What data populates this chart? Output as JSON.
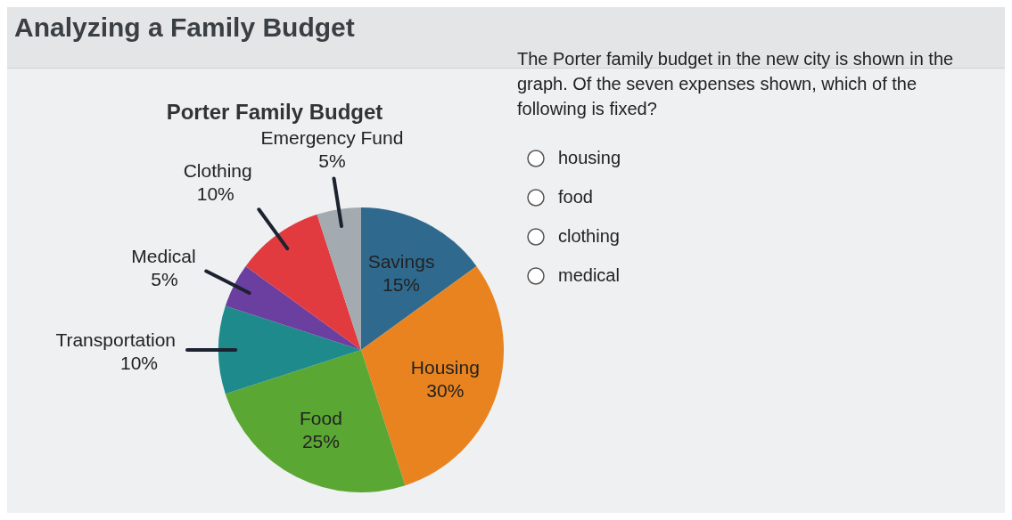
{
  "chart_data": {
    "type": "pie",
    "title": "Porter Family Budget",
    "categories": [
      "Savings",
      "Housing",
      "Food",
      "Transportation",
      "Medical",
      "Clothing",
      "Emergency Fund"
    ],
    "values": [
      15,
      30,
      25,
      10,
      5,
      10,
      5
    ],
    "value_labels": [
      "15%",
      "30%",
      "25%",
      "10%",
      "5%",
      "10%",
      "5%"
    ],
    "colors": [
      "#2f6a8e",
      "#e8831f",
      "#5aa833",
      "#1e8a8c",
      "#6a3fa0",
      "#e23b3f",
      "#a3abb1"
    ],
    "annotations": [
      "Analyzing a Family Budget",
      "The Porter family budget in the new city is shown in the graph. Of the seven expenses shown, which of the following is fixed?",
      "housing",
      "food",
      "clothing",
      "medical"
    ]
  }
}
